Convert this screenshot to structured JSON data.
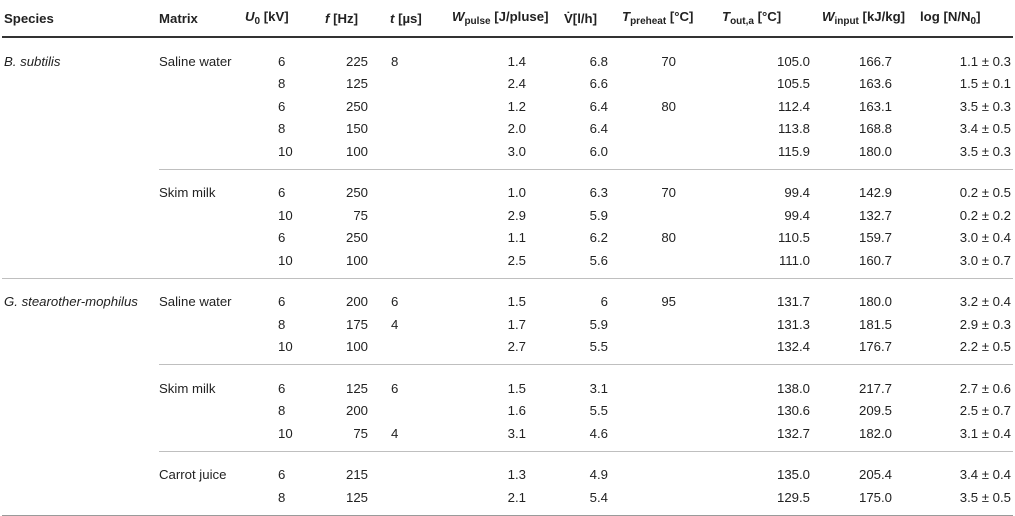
{
  "headers": {
    "species": "Species",
    "matrix": "Matrix",
    "u_sym": "U",
    "u_sub": "0",
    "u_unit": " [kV]",
    "f_sym": "f",
    "f_unit": " [Hz]",
    "t_sym": "t",
    "t_unit": " [µs]",
    "w_sym": "W",
    "w_sub": "pulse",
    "w_unit": " [J/pluse]",
    "v_sym": "V̇",
    "v_unit": "[l/h]",
    "tp_sym": "T",
    "tp_sub": "preheat",
    "tp_unit": " [°C]",
    "to_sym": "T",
    "to_sub": "out,a",
    "to_unit": " [°C]",
    "wi_sym": "W",
    "wi_sub": "input",
    "wi_unit": " [kJ/kg]",
    "log_label": "log [N/N",
    "log_sub": "0",
    "log_close": "]"
  },
  "rows": [
    {
      "species": "B. subtilis",
      "matrix": "Saline water",
      "u": "6",
      "f": "225",
      "t": "8",
      "w": "1.4",
      "v": "6.8",
      "tp": "70",
      "to": "105.0",
      "wi": "166.7",
      "log": "1.1 ± 0.3"
    },
    {
      "species": "",
      "matrix": "",
      "u": "8",
      "f": "125",
      "t": "",
      "w": "2.4",
      "v": "6.6",
      "tp": "",
      "to": "105.5",
      "wi": "163.6",
      "log": "1.5 ± 0.1"
    },
    {
      "species": "",
      "matrix": "",
      "u": "6",
      "f": "250",
      "t": "",
      "w": "1.2",
      "v": "6.4",
      "tp": "80",
      "to": "112.4",
      "wi": "163.1",
      "log": "3.5 ± 0.3"
    },
    {
      "species": "",
      "matrix": "",
      "u": "8",
      "f": "150",
      "t": "",
      "w": "2.0",
      "v": "6.4",
      "tp": "",
      "to": "113.8",
      "wi": "168.8",
      "log": "3.4 ± 0.5"
    },
    {
      "species": "",
      "matrix": "",
      "u": "10",
      "f": "100",
      "t": "",
      "w": "3.0",
      "v": "6.0",
      "tp": "",
      "to": "115.9",
      "wi": "180.0",
      "log": "3.5 ± 0.3"
    },
    {
      "species": "",
      "matrix": "Skim milk",
      "u": "6",
      "f": "250",
      "t": "",
      "w": "1.0",
      "v": "6.3",
      "tp": "70",
      "to": "99.4",
      "wi": "142.9",
      "log": "0.2 ± 0.5"
    },
    {
      "species": "",
      "matrix": "",
      "u": "10",
      "f": "75",
      "t": "",
      "w": "2.9",
      "v": "5.9",
      "tp": "",
      "to": "99.4",
      "wi": "132.7",
      "log": "0.2 ± 0.2"
    },
    {
      "species": "",
      "matrix": "",
      "u": "6",
      "f": "250",
      "t": "",
      "w": "1.1",
      "v": "6.2",
      "tp": "80",
      "to": "110.5",
      "wi": "159.7",
      "log": "3.0 ± 0.4"
    },
    {
      "species": "",
      "matrix": "",
      "u": "10",
      "f": "100",
      "t": "",
      "w": "2.5",
      "v": "5.6",
      "tp": "",
      "to": "111.0",
      "wi": "160.7",
      "log": "3.0 ± 0.7"
    },
    {
      "species": "G. stearother-mophilus",
      "matrix": "Saline water",
      "u": "6",
      "f": "200",
      "t": "6",
      "w": "1.5",
      "v": "6",
      "tp": "95",
      "to": "131.7",
      "wi": "180.0",
      "log": "3.2 ± 0.4"
    },
    {
      "species": "",
      "matrix": "",
      "u": "8",
      "f": "175",
      "t": "4",
      "w": "1.7",
      "v": "5.9",
      "tp": "",
      "to": "131.3",
      "wi": "181.5",
      "log": "2.9 ± 0.3"
    },
    {
      "species": "",
      "matrix": "",
      "u": "10",
      "f": "100",
      "t": "",
      "w": "2.7",
      "v": "5.5",
      "tp": "",
      "to": "132.4",
      "wi": "176.7",
      "log": "2.2 ± 0.5"
    },
    {
      "species": "",
      "matrix": "Skim milk",
      "u": "6",
      "f": "125",
      "t": "6",
      "w": "1.5",
      "v": "3.1",
      "tp": "",
      "to": "138.0",
      "wi": "217.7",
      "log": "2.7 ± 0.6"
    },
    {
      "species": "",
      "matrix": "",
      "u": "8",
      "f": "200",
      "t": "",
      "w": "1.6",
      "v": "5.5",
      "tp": "",
      "to": "130.6",
      "wi": "209.5",
      "log": "2.5 ± 0.7"
    },
    {
      "species": "",
      "matrix": "",
      "u": "10",
      "f": "75",
      "t": "4",
      "w": "3.1",
      "v": "4.6",
      "tp": "",
      "to": "132.7",
      "wi": "182.0",
      "log": "3.1 ± 0.4"
    },
    {
      "species": "",
      "matrix": "Carrot juice",
      "u": "6",
      "f": "215",
      "t": "",
      "w": "1.3",
      "v": "4.9",
      "tp": "",
      "to": "135.0",
      "wi": "205.4",
      "log": "3.4 ± 0.4"
    },
    {
      "species": "",
      "matrix": "",
      "u": "8",
      "f": "125",
      "t": "",
      "w": "2.1",
      "v": "5.4",
      "tp": "",
      "to": "129.5",
      "wi": "175.0",
      "log": "3.5 ± 0.5"
    }
  ]
}
